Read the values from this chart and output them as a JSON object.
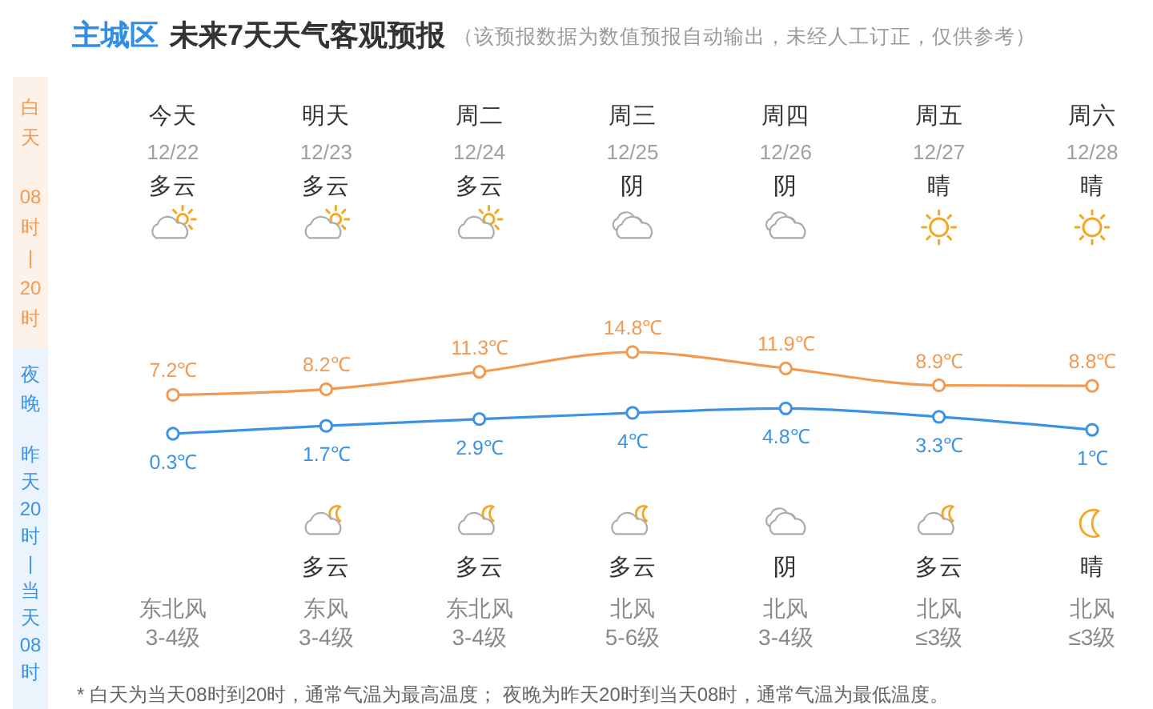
{
  "chart_data": {
    "type": "line",
    "title": "主城区 未来7天天气客观预报",
    "subtitle": "（该预报数据为数值预报自动输出，未经人工订正，仅供参考）",
    "categories": [
      "今天",
      "明天",
      "周二",
      "周三",
      "周四",
      "周五",
      "周六"
    ],
    "series": [
      {
        "color": "#f39a52",
        "values": [
          7.2,
          8.2,
          11.3,
          14.8,
          11.9,
          8.9,
          8.8
        ],
        "value_labels": [
          "7.2℃",
          "8.2℃",
          "11.3℃",
          "14.8℃",
          "11.9℃",
          "8.9℃",
          "8.8℃"
        ]
      },
      {
        "color": "#3b93e6",
        "values": [
          0.3,
          1.7,
          2.9,
          4,
          4.8,
          3.3,
          1
        ],
        "value_labels": [
          "0.3℃",
          "1.7℃",
          "2.9℃",
          "4℃",
          "4.8℃",
          "3.3℃",
          "1℃"
        ]
      }
    ],
    "marker": "circle",
    "annotations": [
      "12/22",
      "12/23",
      "12/24",
      "12/25",
      "12/26",
      "12/27",
      "12/28",
      "多云",
      "多云",
      "多云",
      "阴",
      "阴",
      "晴",
      "晴",
      "多云",
      "多云",
      "多云",
      "阴",
      "多云",
      "晴",
      "东北风",
      "东风",
      "东北风",
      "北风",
      "北风",
      "北风",
      "北风",
      "3-4级",
      "3-4级",
      "3-4级",
      "5-6级",
      "3-4级",
      "≤3级",
      "≤3级",
      "白天",
      "08时|20时",
      "夜晚",
      "昨天20时|当天08时",
      "* 白天为当天08时到20时，通常气温为最高温度； 夜晚为昨天20时到当天08时，通常气温为最低温度。"
    ]
  }
}
